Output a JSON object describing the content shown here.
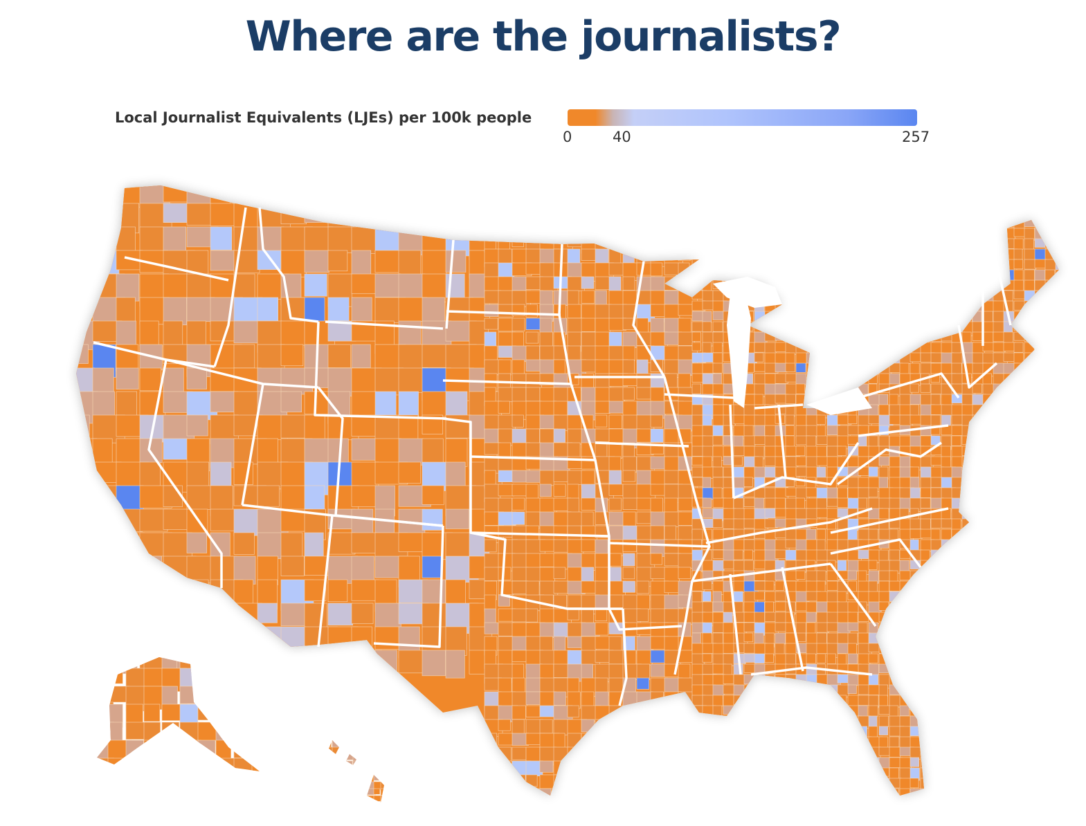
{
  "title": "Where are the journalists?",
  "legend": {
    "label": "Local Journalist Equivalents (LJEs) per 100k people",
    "min_label": "0",
    "mid_label": "40",
    "max_label": "257",
    "scale_stops": [
      0,
      40,
      257
    ],
    "colors": {
      "low": "#f0882a",
      "mid_low": "#d6a58c",
      "mid": "#c8c2d8",
      "light_blue": "#b4c8fa",
      "high": "#5a86f0"
    }
  },
  "colors": {
    "title": "#1b3d66",
    "state_border": "#ffffff",
    "county_border": "#f6d6b6"
  }
}
